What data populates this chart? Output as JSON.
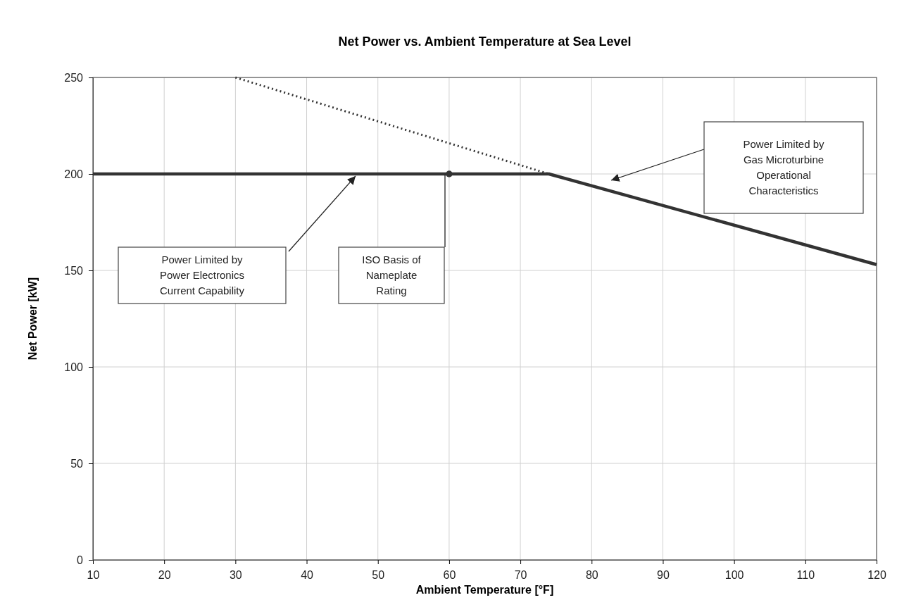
{
  "chart_data": {
    "type": "line",
    "title": "Net Power vs. Ambient Temperature at Sea Level",
    "xlabel": "Ambient Temperature [°F]",
    "ylabel": "Net Power [kW]",
    "xlim": [
      10,
      120
    ],
    "xticks": [
      10,
      20,
      30,
      40,
      50,
      60,
      70,
      80,
      90,
      100,
      110,
      120
    ],
    "ylim": [
      0,
      250
    ],
    "yticks": [
      0,
      50,
      100,
      150,
      200,
      250
    ],
    "grid": true,
    "series": [
      {
        "type": "line",
        "color": "#333333",
        "x": [
          10,
          74,
          120
        ],
        "values": [
          200,
          200,
          153
        ],
        "line_style": "solid",
        "marker": "none"
      },
      {
        "type": "line",
        "color": "#333333",
        "x": [
          30,
          74
        ],
        "values": [
          250,
          200
        ],
        "line_style": "dotted",
        "marker": "none"
      },
      {
        "type": "scatter",
        "color": "#333333",
        "x": [
          60
        ],
        "values": [
          200
        ],
        "marker": "circle"
      }
    ],
    "annotations": [
      "Power Limited by\nPower Electronics\nCurrent Capability",
      "ISO Basis of\nNameplate\nRating",
      "Power Limited by\nGas Microturbine\nOperational\nCharacteristics"
    ]
  }
}
